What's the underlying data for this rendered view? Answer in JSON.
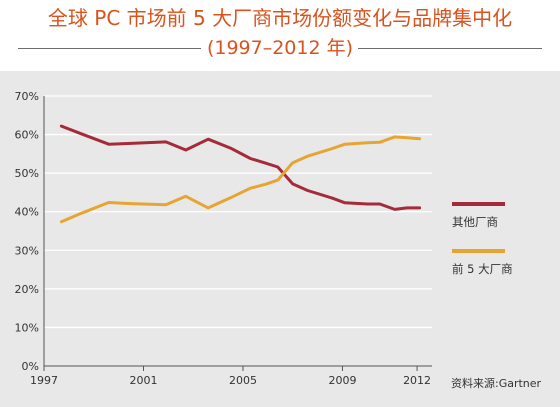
{
  "title": "全球 PC 市场前 5 大厂商市场份额变化与品牌集中化",
  "subtitle": "(1997–2012 年)",
  "source": "资料来源:Gartner",
  "colors": {
    "title": "#d9531e",
    "others": "#a52a3a",
    "top5": "#e6a532",
    "panel": "#e8e8e8",
    "grid": "#ffffff",
    "axis": "#555555"
  },
  "chart_data": {
    "type": "line",
    "title": "全球 PC 市场前 5 大厂商市场份额变化与品牌集中化",
    "subtitle": "(1997–2012 年)",
    "xlabel": "",
    "ylabel": "",
    "xlim": [
      1997,
      2012.6
    ],
    "ylim": [
      0,
      70
    ],
    "x_ticks": [
      1997,
      2001,
      2005,
      2009,
      2012
    ],
    "y_ticks": [
      0,
      10,
      20,
      30,
      40,
      50,
      60,
      70
    ],
    "y_tick_labels": [
      "0%",
      "10%",
      "20%",
      "30%",
      "40%",
      "50%",
      "60%",
      "70%"
    ],
    "grid": true,
    "legend_position": "right",
    "series": [
      {
        "name": "其他厂商",
        "color": "#a52a3a",
        "points": [
          [
            1997.7,
            62.2
          ],
          [
            1998.5,
            60.2
          ],
          [
            1999.6,
            57.5
          ],
          [
            2000.5,
            57.7
          ],
          [
            2001.9,
            58.1
          ],
          [
            2002.7,
            56.0
          ],
          [
            2003.6,
            58.8
          ],
          [
            2004.5,
            56.5
          ],
          [
            2005.3,
            53.8
          ],
          [
            2005.9,
            52.6
          ],
          [
            2006.4,
            51.6
          ],
          [
            2007.0,
            47.2
          ],
          [
            2007.6,
            45.5
          ],
          [
            2008.6,
            43.5
          ],
          [
            2009.1,
            42.3
          ],
          [
            2010.0,
            42.0
          ],
          [
            2010.5,
            42.0
          ],
          [
            2011.1,
            40.6
          ],
          [
            2011.6,
            41.0
          ],
          [
            2012.1,
            41.0
          ]
        ]
      },
      {
        "name": "前 5 大厂商",
        "color": "#e6a532",
        "points": [
          [
            1997.7,
            37.4
          ],
          [
            1998.5,
            39.6
          ],
          [
            1999.6,
            42.4
          ],
          [
            2000.5,
            42.1
          ],
          [
            2001.9,
            41.8
          ],
          [
            2002.7,
            44.0
          ],
          [
            2003.6,
            41.0
          ],
          [
            2004.5,
            43.6
          ],
          [
            2005.3,
            46.1
          ],
          [
            2005.9,
            47.1
          ],
          [
            2006.4,
            48.2
          ],
          [
            2007.0,
            52.7
          ],
          [
            2007.6,
            54.4
          ],
          [
            2008.6,
            56.4
          ],
          [
            2009.1,
            57.5
          ],
          [
            2010.0,
            57.9
          ],
          [
            2010.5,
            58.0
          ],
          [
            2011.1,
            59.4
          ],
          [
            2011.6,
            59.2
          ],
          [
            2012.1,
            58.9
          ]
        ]
      }
    ]
  }
}
